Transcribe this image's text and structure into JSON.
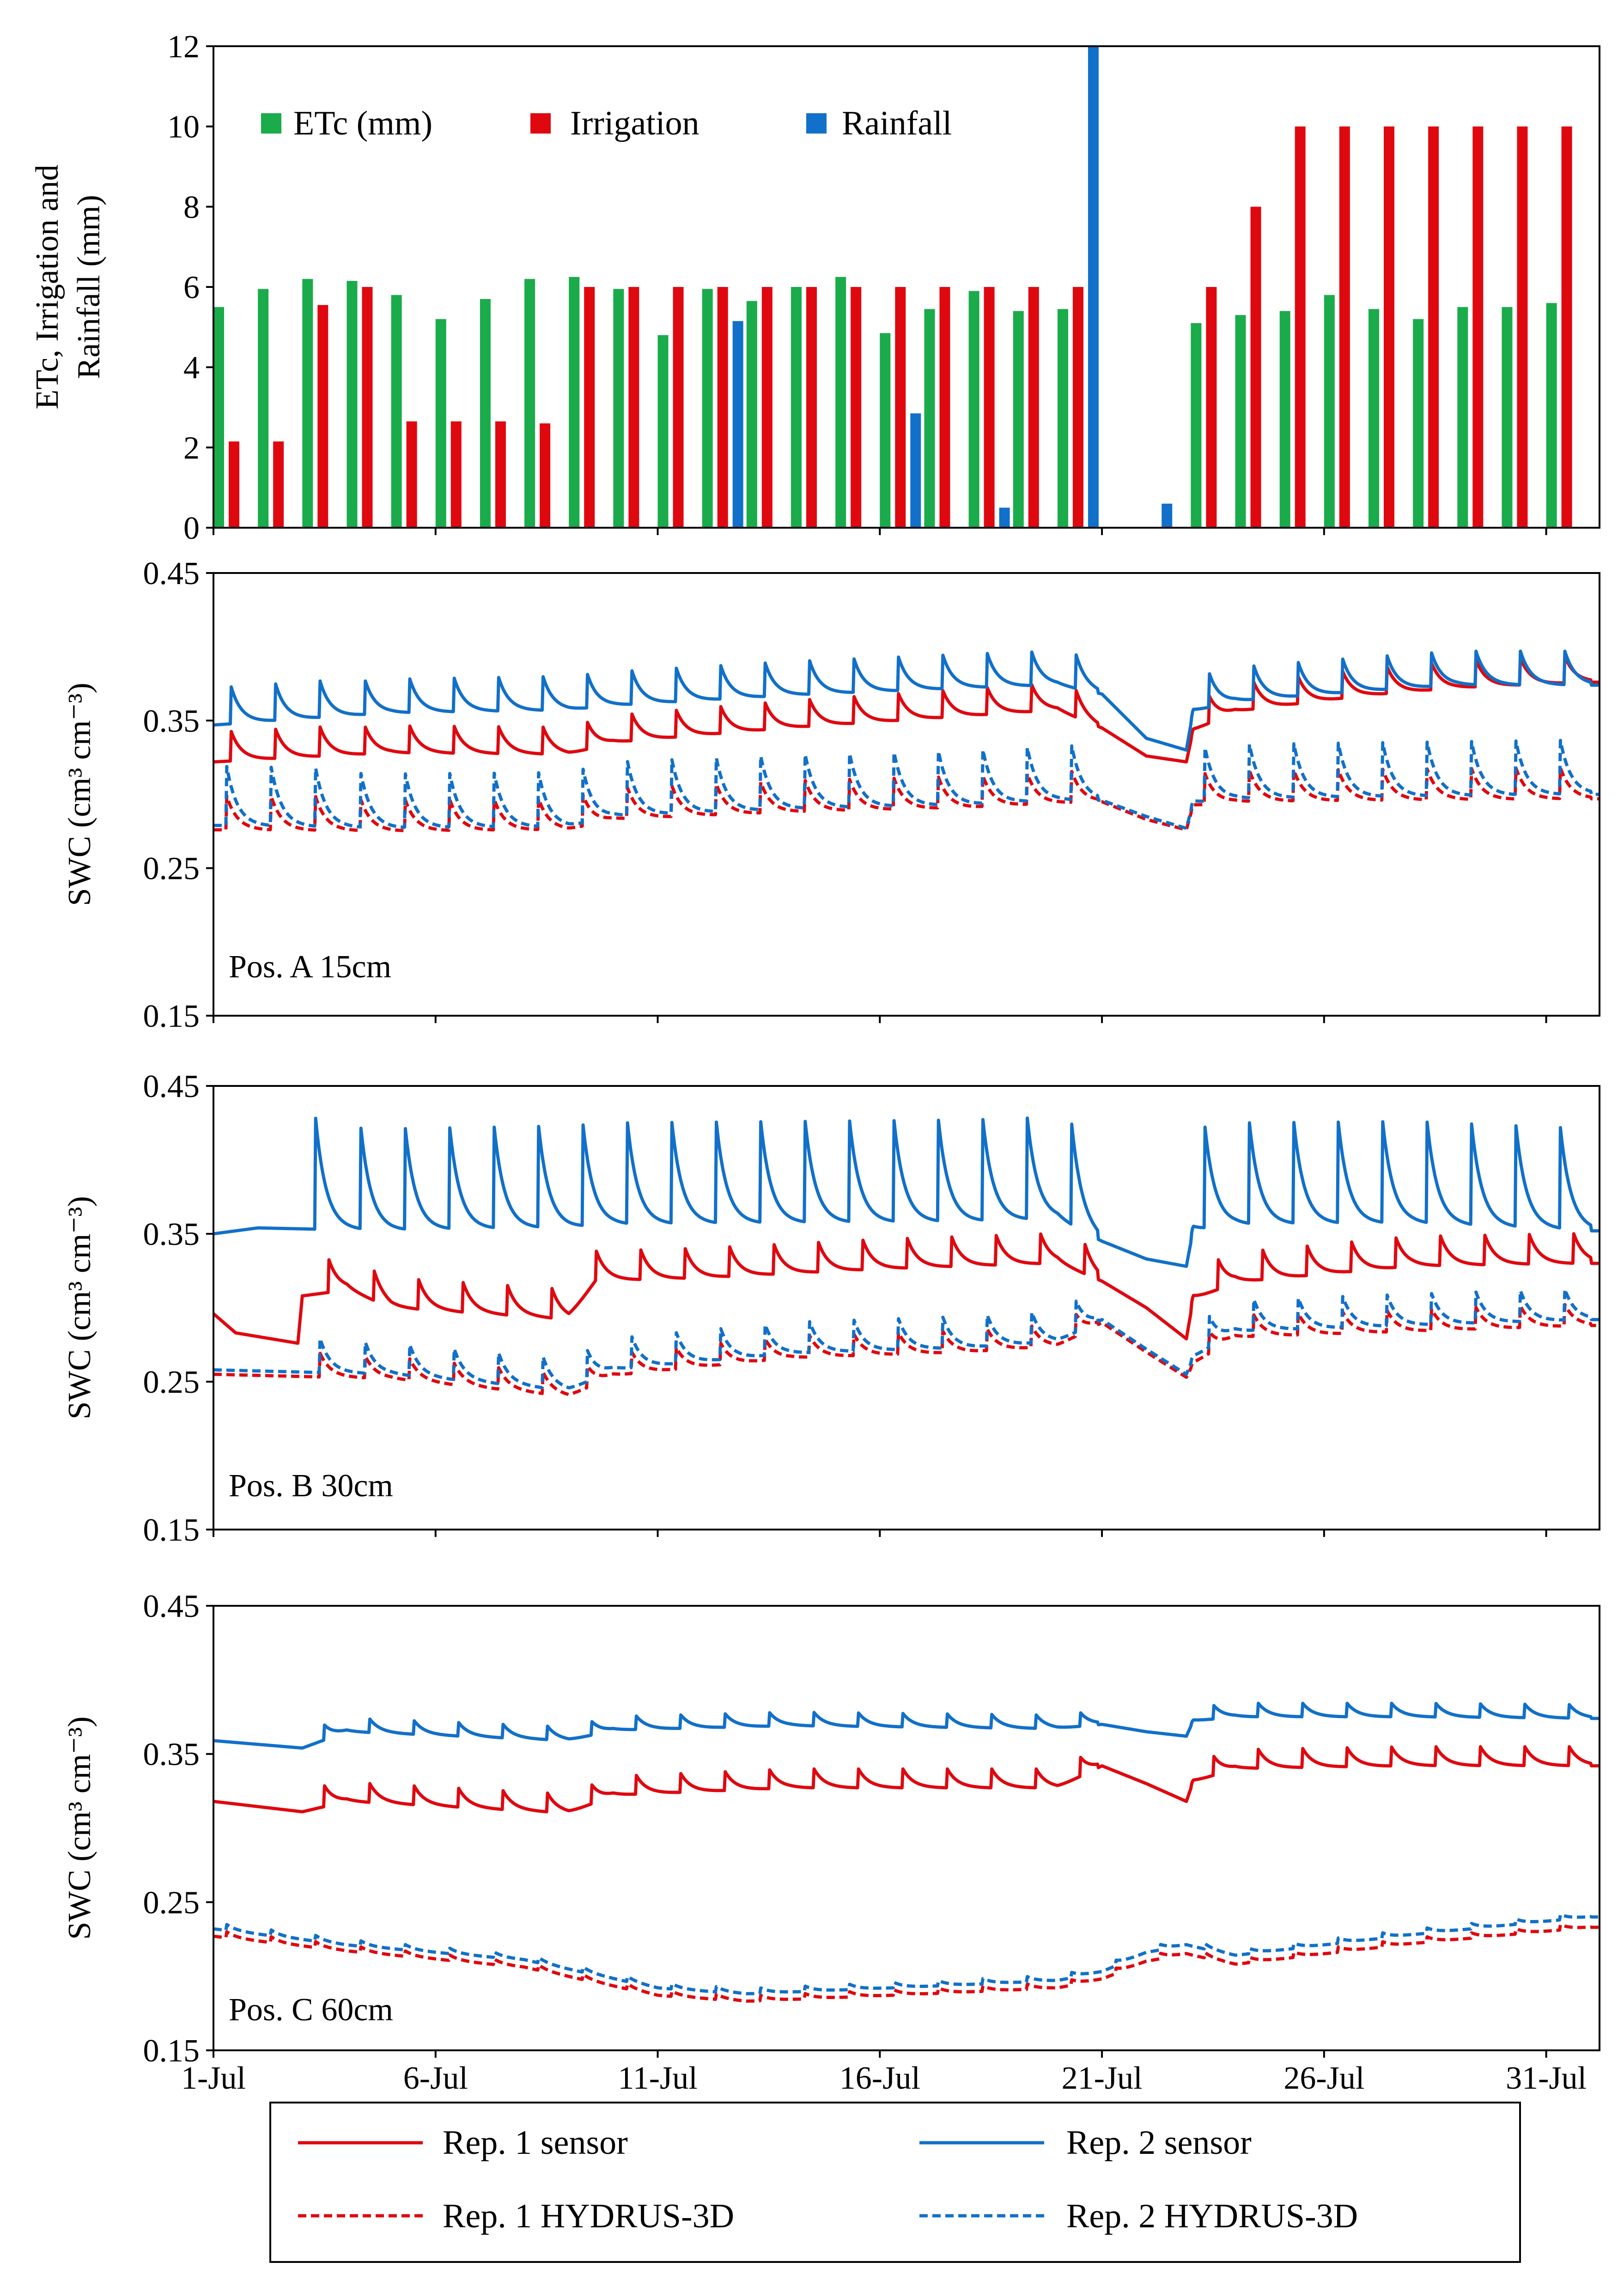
{
  "chart_data": [
    {
      "type": "bar",
      "id": "weather",
      "ylabel_lines": [
        "ETc, Irrigation and",
        "Rainfall (mm)"
      ],
      "ylim": [
        0,
        12
      ],
      "yticks": [
        "0",
        "2",
        "4",
        "6",
        "8",
        "10",
        "12"
      ],
      "days": [
        1,
        2,
        3,
        4,
        5,
        6,
        7,
        8,
        9,
        10,
        11,
        12,
        13,
        14,
        15,
        16,
        17,
        18,
        19,
        20,
        21,
        22,
        23,
        24,
        25,
        26,
        27,
        28,
        29,
        30,
        31
      ],
      "series": [
        {
          "name": "ETc (mm)",
          "color": "#1aab4b",
          "values": [
            5.5,
            5.95,
            6.2,
            6.15,
            5.8,
            5.2,
            5.7,
            6.2,
            6.25,
            5.95,
            4.8,
            5.95,
            5.65,
            6.0,
            6.25,
            4.85,
            5.45,
            5.9,
            5.4,
            5.45,
            0,
            0,
            5.1,
            5.3,
            5.4,
            5.8,
            5.45,
            5.2,
            5.5,
            5.5,
            5.6
          ]
        },
        {
          "name": "Irrigation",
          "color": "#e0080f",
          "values": [
            2.15,
            2.15,
            5.55,
            6.0,
            2.65,
            2.65,
            2.65,
            2.6,
            6.0,
            6.0,
            6.0,
            6.0,
            6.0,
            6.0,
            6.0,
            6.0,
            6.0,
            6.0,
            6.0,
            6.0,
            0,
            0,
            6.0,
            8.0,
            10.0,
            10.0,
            10.0,
            10.0,
            10.0,
            10.0,
            10.0
          ]
        },
        {
          "name": "Rainfall",
          "color": "#1170c9",
          "values": [
            0,
            0,
            0,
            0,
            0,
            0,
            0,
            0,
            0,
            0,
            0,
            5.15,
            0,
            0,
            0,
            2.85,
            0,
            0.5,
            0,
            12.0,
            0,
            0.6,
            0,
            0,
            0,
            0,
            0,
            0,
            0,
            0,
            0
          ]
        }
      ]
    },
    {
      "type": "line",
      "id": "A",
      "label": "Pos. A 15cm",
      "ylim": [
        0.15,
        0.45
      ],
      "yticks": [
        "0.15",
        "0.25",
        "0.35",
        "0.45"
      ],
      "ylabel": "SWC (cm³ cm⁻³)",
      "series": [
        {
          "name": "Rep. 1 sensor",
          "color": "#e0080f",
          "style": "solid",
          "x": [
            1,
            5,
            9,
            10,
            14,
            18,
            20,
            21,
            22,
            22.9,
            23.05,
            24,
            27,
            29,
            32
          ],
          "y": [
            0.322,
            0.328,
            0.327,
            0.335,
            0.345,
            0.353,
            0.357,
            0.345,
            0.326,
            0.322,
            0.343,
            0.356,
            0.367,
            0.372,
            0.376
          ],
          "spike_amp": 0.02,
          "spike_start": 1.4,
          "spike_end": 32,
          "gap": [
            20.9,
            23.0
          ]
        },
        {
          "name": "Rep. 2 sensor",
          "color": "#1170c9",
          "style": "solid",
          "x": [
            1,
            5,
            9,
            10,
            14,
            18,
            20,
            21,
            22,
            22.9,
            23.05,
            24,
            27,
            29,
            32
          ],
          "y": [
            0.347,
            0.355,
            0.357,
            0.36,
            0.367,
            0.372,
            0.374,
            0.368,
            0.338,
            0.33,
            0.356,
            0.363,
            0.37,
            0.374,
            0.374
          ],
          "spike_amp": 0.025,
          "spike_start": 1.4,
          "spike_end": 32,
          "gap": [
            20.9,
            23.0
          ]
        },
        {
          "name": "Rep. 1 HYDRUS-3D",
          "color": "#e0080f",
          "style": "dashed",
          "x": [
            1,
            5,
            9,
            10,
            14,
            18,
            20,
            21,
            22,
            22.9,
            23.05,
            24,
            32
          ],
          "y": [
            0.276,
            0.275,
            0.276,
            0.283,
            0.288,
            0.291,
            0.294,
            0.295,
            0.283,
            0.276,
            0.292,
            0.295,
            0.297
          ],
          "spike_amp": 0.023,
          "spike_start": 1.3,
          "spike_end": 32,
          "gap": [
            20.9,
            23.0
          ]
        },
        {
          "name": "Rep. 2 HYDRUS-3D",
          "color": "#1170c9",
          "style": "dashed",
          "x": [
            1,
            5,
            9,
            10,
            14,
            18,
            20,
            21,
            22,
            22.9,
            23.05,
            24,
            32
          ],
          "y": [
            0.279,
            0.277,
            0.278,
            0.285,
            0.29,
            0.293,
            0.296,
            0.296,
            0.285,
            0.277,
            0.294,
            0.297,
            0.3
          ],
          "spike_amp": 0.04,
          "spike_start": 1.3,
          "spike_end": 32,
          "gap": [
            20.9,
            23.0
          ]
        }
      ]
    },
    {
      "type": "line",
      "id": "B",
      "label": "Pos. B 30cm",
      "ylim": [
        0.15,
        0.45
      ],
      "yticks": [
        "0.15",
        "0.25",
        "0.35",
        "0.45"
      ],
      "ylabel": "SWC (cm³ cm⁻³)",
      "series": [
        {
          "name": "Rep. 1 sensor",
          "color": "#e0080f",
          "style": "solid",
          "x": [
            1,
            1.5,
            2.9,
            3.0,
            4,
            5,
            9,
            9.6,
            12,
            16,
            20,
            21,
            22,
            22.9,
            23.05,
            24,
            28,
            32
          ],
          "y": [
            0.296,
            0.283,
            0.276,
            0.308,
            0.312,
            0.3,
            0.292,
            0.318,
            0.32,
            0.326,
            0.33,
            0.318,
            0.3,
            0.279,
            0.305,
            0.317,
            0.328,
            0.33
          ],
          "spike_amp": 0.022,
          "spike_start": 3.6,
          "spike_end": 32,
          "gap": [
            20.9,
            23.0
          ]
        },
        {
          "name": "Rep. 2 sensor",
          "color": "#1170c9",
          "style": "solid",
          "x": [
            1,
            2,
            5,
            9,
            10,
            14,
            18,
            20,
            21,
            22,
            22.9,
            23.05,
            24,
            28,
            32
          ],
          "y": [
            0.35,
            0.354,
            0.352,
            0.354,
            0.356,
            0.357,
            0.358,
            0.36,
            0.345,
            0.333,
            0.328,
            0.352,
            0.356,
            0.357,
            0.352
          ],
          "spike_amp": 0.075,
          "spike_start": 3.3,
          "spike_end": 32,
          "gap": [
            20.9,
            23.0
          ]
        },
        {
          "name": "Rep. 1 HYDRUS-3D",
          "color": "#e0080f",
          "style": "dashed",
          "x": [
            1,
            5,
            9,
            10,
            14,
            18,
            20,
            21,
            22,
            22.9,
            23.05,
            24,
            32
          ],
          "y": [
            0.255,
            0.252,
            0.24,
            0.254,
            0.266,
            0.27,
            0.274,
            0.29,
            0.27,
            0.253,
            0.262,
            0.28,
            0.288
          ],
          "spike_amp": 0.016,
          "spike_start": 3.4,
          "spike_end": 32,
          "gap": [
            20.9,
            23.0
          ]
        },
        {
          "name": "Rep. 2 HYDRUS-3D",
          "color": "#1170c9",
          "style": "dashed",
          "x": [
            1,
            5,
            9,
            10,
            14,
            18,
            20,
            21,
            22,
            22.9,
            23.05,
            24,
            32
          ],
          "y": [
            0.258,
            0.255,
            0.244,
            0.258,
            0.269,
            0.273,
            0.277,
            0.292,
            0.272,
            0.255,
            0.266,
            0.284,
            0.292
          ],
          "spike_amp": 0.023,
          "spike_start": 3.4,
          "spike_end": 32,
          "gap": [
            20.9,
            23.0
          ]
        }
      ]
    },
    {
      "type": "line",
      "id": "C",
      "label": "Pos. C 60cm",
      "ylim": [
        0.15,
        0.45
      ],
      "yticks": [
        "0.15",
        "0.25",
        "0.35",
        "0.45"
      ],
      "ylabel": "SWC (cm³ cm⁻³)",
      "series": [
        {
          "name": "Rep. 1 sensor",
          "color": "#e0080f",
          "style": "solid",
          "x": [
            1,
            3,
            4,
            9,
            10,
            14,
            20,
            21,
            22,
            22.9,
            23.05,
            24,
            28,
            32
          ],
          "y": [
            0.318,
            0.311,
            0.318,
            0.31,
            0.322,
            0.327,
            0.327,
            0.342,
            0.33,
            0.318,
            0.331,
            0.34,
            0.342,
            0.342
          ],
          "spike_amp": 0.014,
          "spike_start": 3.5,
          "spike_end": 32,
          "gap": [
            20.9,
            23.0
          ]
        },
        {
          "name": "Rep. 2 sensor",
          "color": "#1170c9",
          "style": "solid",
          "x": [
            1,
            3,
            4,
            9,
            10,
            14,
            20,
            21,
            22,
            22.9,
            23.05,
            24,
            28,
            32
          ],
          "y": [
            0.359,
            0.354,
            0.365,
            0.359,
            0.366,
            0.369,
            0.367,
            0.37,
            0.365,
            0.362,
            0.372,
            0.375,
            0.375,
            0.374
          ],
          "spike_amp": 0.01,
          "spike_start": 3.5,
          "spike_end": 32,
          "gap": [
            20.9,
            23.0
          ]
        },
        {
          "name": "Rep. 1 HYDRUS-3D",
          "color": "#e0080f",
          "style": "dashed",
          "x": [
            1,
            4,
            8,
            11,
            13,
            17,
            20,
            21,
            22,
            22.9,
            23.05,
            24,
            28,
            32
          ],
          "y": [
            0.227,
            0.217,
            0.206,
            0.187,
            0.183,
            0.188,
            0.192,
            0.198,
            0.21,
            0.215,
            0.214,
            0.208,
            0.222,
            0.233
          ],
          "spike_amp": 0.004,
          "spike_start": 1.3,
          "spike_end": 32,
          "gap": null
        },
        {
          "name": "Rep. 2 HYDRUS-3D",
          "color": "#1170c9",
          "style": "dashed",
          "x": [
            1,
            4,
            8,
            11,
            13,
            17,
            20,
            21,
            22,
            22.9,
            23.05,
            24,
            28,
            32
          ],
          "y": [
            0.232,
            0.221,
            0.211,
            0.192,
            0.188,
            0.193,
            0.197,
            0.203,
            0.216,
            0.221,
            0.22,
            0.214,
            0.228,
            0.24
          ],
          "spike_amp": 0.004,
          "spike_start": 1.3,
          "spike_end": 32,
          "gap": null
        }
      ]
    }
  ],
  "x_axis": {
    "domain": [
      1,
      32.2
    ],
    "tick_days": [
      1,
      6,
      11,
      16,
      21,
      26,
      31
    ],
    "tick_labels": [
      "1-Jul",
      "6-Jul",
      "11-Jul",
      "16-Jul",
      "21-Jul",
      "26-Jul",
      "31-Jul"
    ]
  },
  "legend_bottom": [
    {
      "label": "Rep. 1 sensor",
      "color": "#e0080f",
      "style": "solid"
    },
    {
      "label": "Rep. 2 sensor",
      "color": "#1170c9",
      "style": "solid"
    },
    {
      "label": "Rep. 1 HYDRUS-3D",
      "color": "#e0080f",
      "style": "dashed"
    },
    {
      "label": "Rep. 2 HYDRUS-3D",
      "color": "#1170c9",
      "style": "dashed"
    }
  ]
}
